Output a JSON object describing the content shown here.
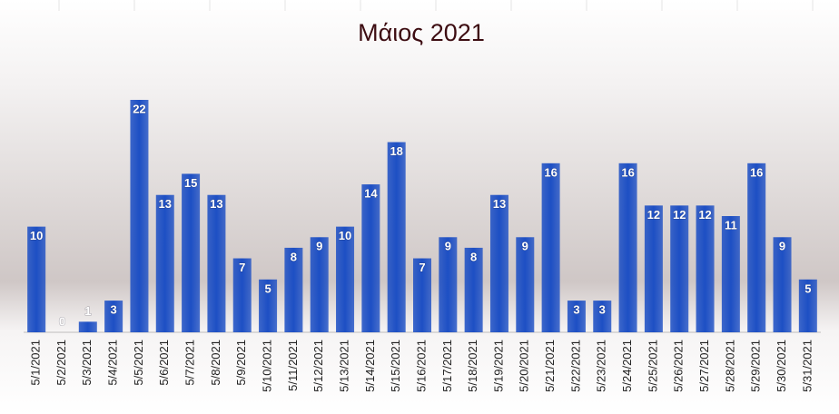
{
  "chart_data": {
    "type": "bar",
    "title": "Μάιος 2021",
    "categories": [
      "5/1/2021",
      "5/2/2021",
      "5/3/2021",
      "5/4/2021",
      "5/5/2021",
      "5/6/2021",
      "5/7/2021",
      "5/8/2021",
      "5/9/2021",
      "5/10/2021",
      "5/11/2021",
      "5/12/2021",
      "5/13/2021",
      "5/14/2021",
      "5/15/2021",
      "5/16/2021",
      "5/17/2021",
      "5/18/2021",
      "5/19/2021",
      "5/20/2021",
      "5/21/2021",
      "5/22/2021",
      "5/23/2021",
      "5/24/2021",
      "5/25/2021",
      "5/26/2021",
      "5/27/2021",
      "5/28/2021",
      "5/29/2021",
      "5/30/2021",
      "5/31/2021"
    ],
    "values": [
      10,
      0,
      1,
      3,
      22,
      13,
      15,
      13,
      7,
      5,
      8,
      9,
      10,
      14,
      18,
      7,
      9,
      8,
      13,
      9,
      16,
      3,
      3,
      16,
      12,
      12,
      12,
      11,
      16,
      9,
      5
    ],
    "color": "#1d4fc4"
  }
}
